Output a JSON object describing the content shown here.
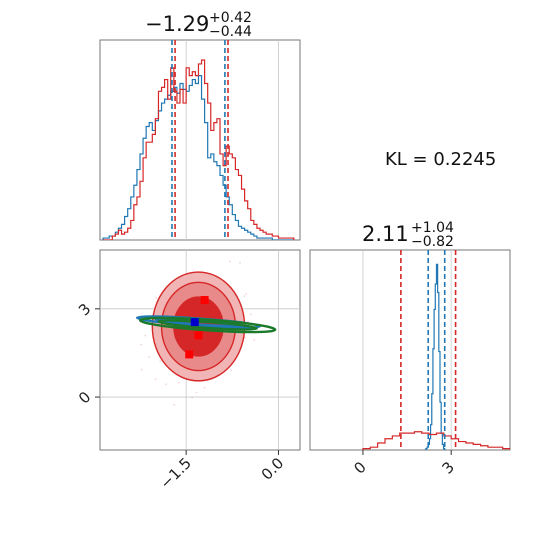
{
  "chart_data": [
    {
      "type": "histogram",
      "panel": "marginal-param-1",
      "title": {
        "median": "−1.29",
        "plus": "+0.42",
        "minus": "−0.44"
      },
      "xlim": [
        -2.9,
        0.35
      ],
      "series": [
        {
          "name": "",
          "color": "#1f77b4",
          "bin_edges_start": -2.85,
          "bin_width": 0.05,
          "counts": [
            1,
            1,
            2,
            2,
            4,
            6,
            8,
            12,
            16,
            22,
            28,
            36,
            44,
            52,
            58,
            60,
            56,
            61,
            66,
            70,
            72,
            74,
            76,
            78,
            75,
            80,
            77,
            76,
            79,
            82,
            80,
            84,
            72,
            60,
            42,
            44,
            40,
            38,
            33,
            28,
            22,
            18,
            13,
            10,
            7,
            6,
            5,
            4,
            3,
            2,
            1,
            1,
            1,
            1,
            1,
            0,
            0,
            0,
            0,
            0,
            0,
            0
          ]
        },
        {
          "name": "",
          "color": "#d62728",
          "bin_edges_start": -2.85,
          "bin_width": 0.05,
          "counts": [
            0,
            0,
            0,
            2,
            3,
            5,
            3,
            4,
            6,
            10,
            18,
            22,
            30,
            42,
            50,
            50,
            54,
            62,
            76,
            78,
            82,
            72,
            88,
            76,
            70,
            77,
            70,
            88,
            84,
            86,
            84,
            90,
            92,
            80,
            70,
            56,
            60,
            62,
            44,
            38,
            48,
            44,
            42,
            36,
            33,
            26,
            20,
            16,
            10,
            8,
            6,
            5,
            4,
            3,
            3,
            2,
            2,
            1,
            1,
            1,
            1,
            1
          ]
        }
      ],
      "quantile_lines": [
        {
          "color": "#1f77b4",
          "values": [
            -1.73,
            -0.87
          ]
        },
        {
          "color": "#d62728",
          "values": [
            -1.68,
            -0.82
          ]
        }
      ]
    },
    {
      "type": "contour",
      "panel": "joint-param-1-param-2",
      "xlim": [
        -2.9,
        0.35
      ],
      "ylim": [
        -1.8,
        5.0
      ],
      "x_ticks": [
        -1.5,
        0.0
      ],
      "x_tick_labels": [
        "−1.5",
        "0.0"
      ],
      "y_ticks": [
        0,
        3
      ],
      "y_tick_labels": [
        "0",
        "3"
      ],
      "series": [
        {
          "name": "",
          "color": "#d62728",
          "center": [
            -1.3,
            2.4
          ],
          "levels": [
            {
              "sx": 0.75,
              "sy": 1.85,
              "fill": "#f2b5b5"
            },
            {
              "sx": 0.6,
              "sy": 1.5,
              "fill": "#e98a8a"
            },
            {
              "sx": 0.4,
              "sy": 1.0,
              "fill": "#d62728"
            }
          ]
        },
        {
          "name": "",
          "color": "#1f77b4",
          "center": [
            -1.3,
            2.55
          ],
          "levels": [
            {
              "sx": 1.0,
              "sy": 0.12
            },
            {
              "sx": 0.7,
              "sy": 0.08
            }
          ]
        },
        {
          "name": "",
          "color": "#1a7a2a",
          "center": [
            -1.15,
            2.45
          ],
          "levels": [
            {
              "sx": 1.1,
              "sy": 0.18
            },
            {
              "sx": 0.8,
              "sy": 0.1
            }
          ]
        }
      ],
      "markers": [
        {
          "color": "#ff0000",
          "x": -1.2,
          "y": 3.3
        },
        {
          "color": "#ff0000",
          "x": -1.3,
          "y": 2.1
        },
        {
          "color": "#ff0000",
          "x": -1.45,
          "y": 1.45
        },
        {
          "color": "#0000cc",
          "x": -1.36,
          "y": 2.55
        }
      ]
    },
    {
      "type": "histogram",
      "panel": "marginal-param-2",
      "title": {
        "median": "2.11",
        "plus": "+1.04",
        "minus": "−0.82"
      },
      "xlim": [
        -1.8,
        5.0
      ],
      "x_ticks": [
        0,
        3
      ],
      "x_tick_labels": [
        "0",
        "3"
      ],
      "series": [
        {
          "name": "",
          "color": "#1f77b4",
          "bin_edges_start": 2.1,
          "bin_width": 0.04,
          "counts": [
            0,
            1,
            2,
            4,
            8,
            18,
            40,
            72,
            100,
            118,
            132,
            112,
            70,
            34,
            12,
            4,
            1,
            0
          ]
        },
        {
          "name": "",
          "color": "#d62728",
          "bin_edges_start": 0.0,
          "bin_width": 0.25,
          "counts": [
            1,
            2,
            5,
            8,
            10,
            12,
            12,
            13,
            12,
            11,
            12,
            10,
            8,
            6,
            5,
            4,
            3,
            2,
            2,
            1
          ]
        }
      ],
      "quantile_lines": [
        {
          "color": "#1f77b4",
          "values": [
            2.22,
            2.78
          ]
        },
        {
          "color": "#d62728",
          "values": [
            1.29,
            3.15
          ]
        }
      ]
    }
  ],
  "annotation": {
    "kl_text": "KL = 0.2245"
  }
}
